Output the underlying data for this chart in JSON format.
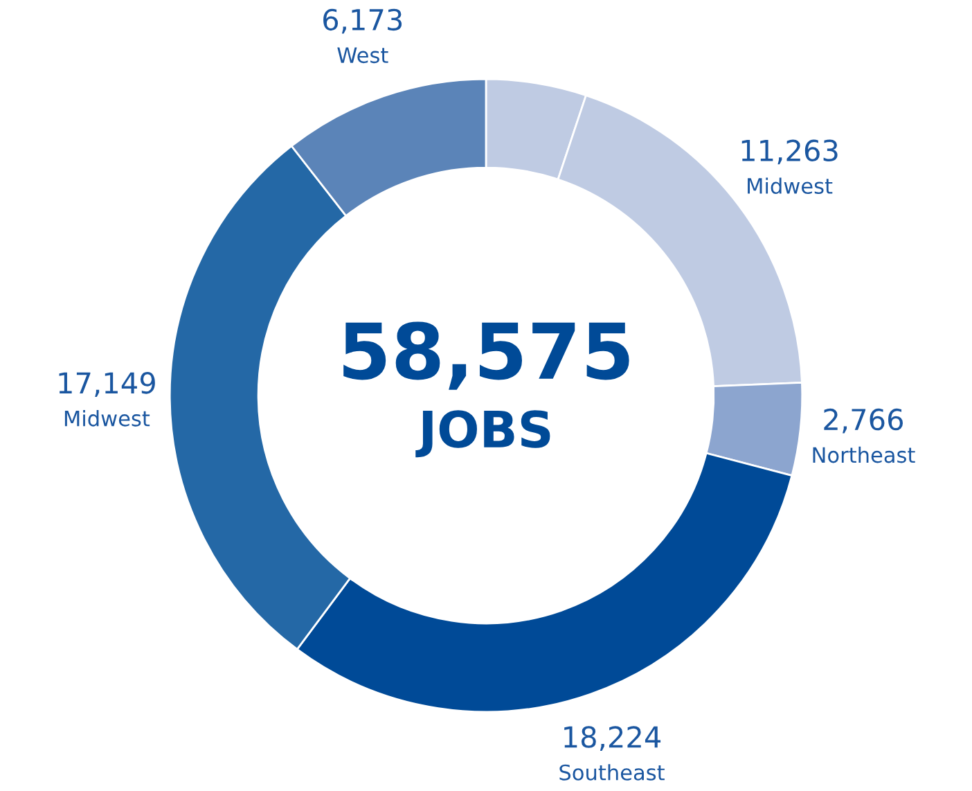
{
  "chart_data": {
    "type": "donut",
    "categories": [
      null,
      "Midwest",
      "Northeast",
      "Southeast",
      "Midwest",
      "West"
    ],
    "values": [
      3000,
      11263,
      2766,
      18224,
      17149,
      6173
    ],
    "value_labels": [
      null,
      "11,263",
      "2,766",
      "18,224",
      "17,149",
      "6,173"
    ],
    "colors": [
      "#bfcbe3",
      "#bfcbe3",
      "#8ca5cf",
      "#004a97",
      "#2468a6",
      "#5b84b8"
    ],
    "annotations": [
      "58,575",
      "JOBS"
    ]
  }
}
